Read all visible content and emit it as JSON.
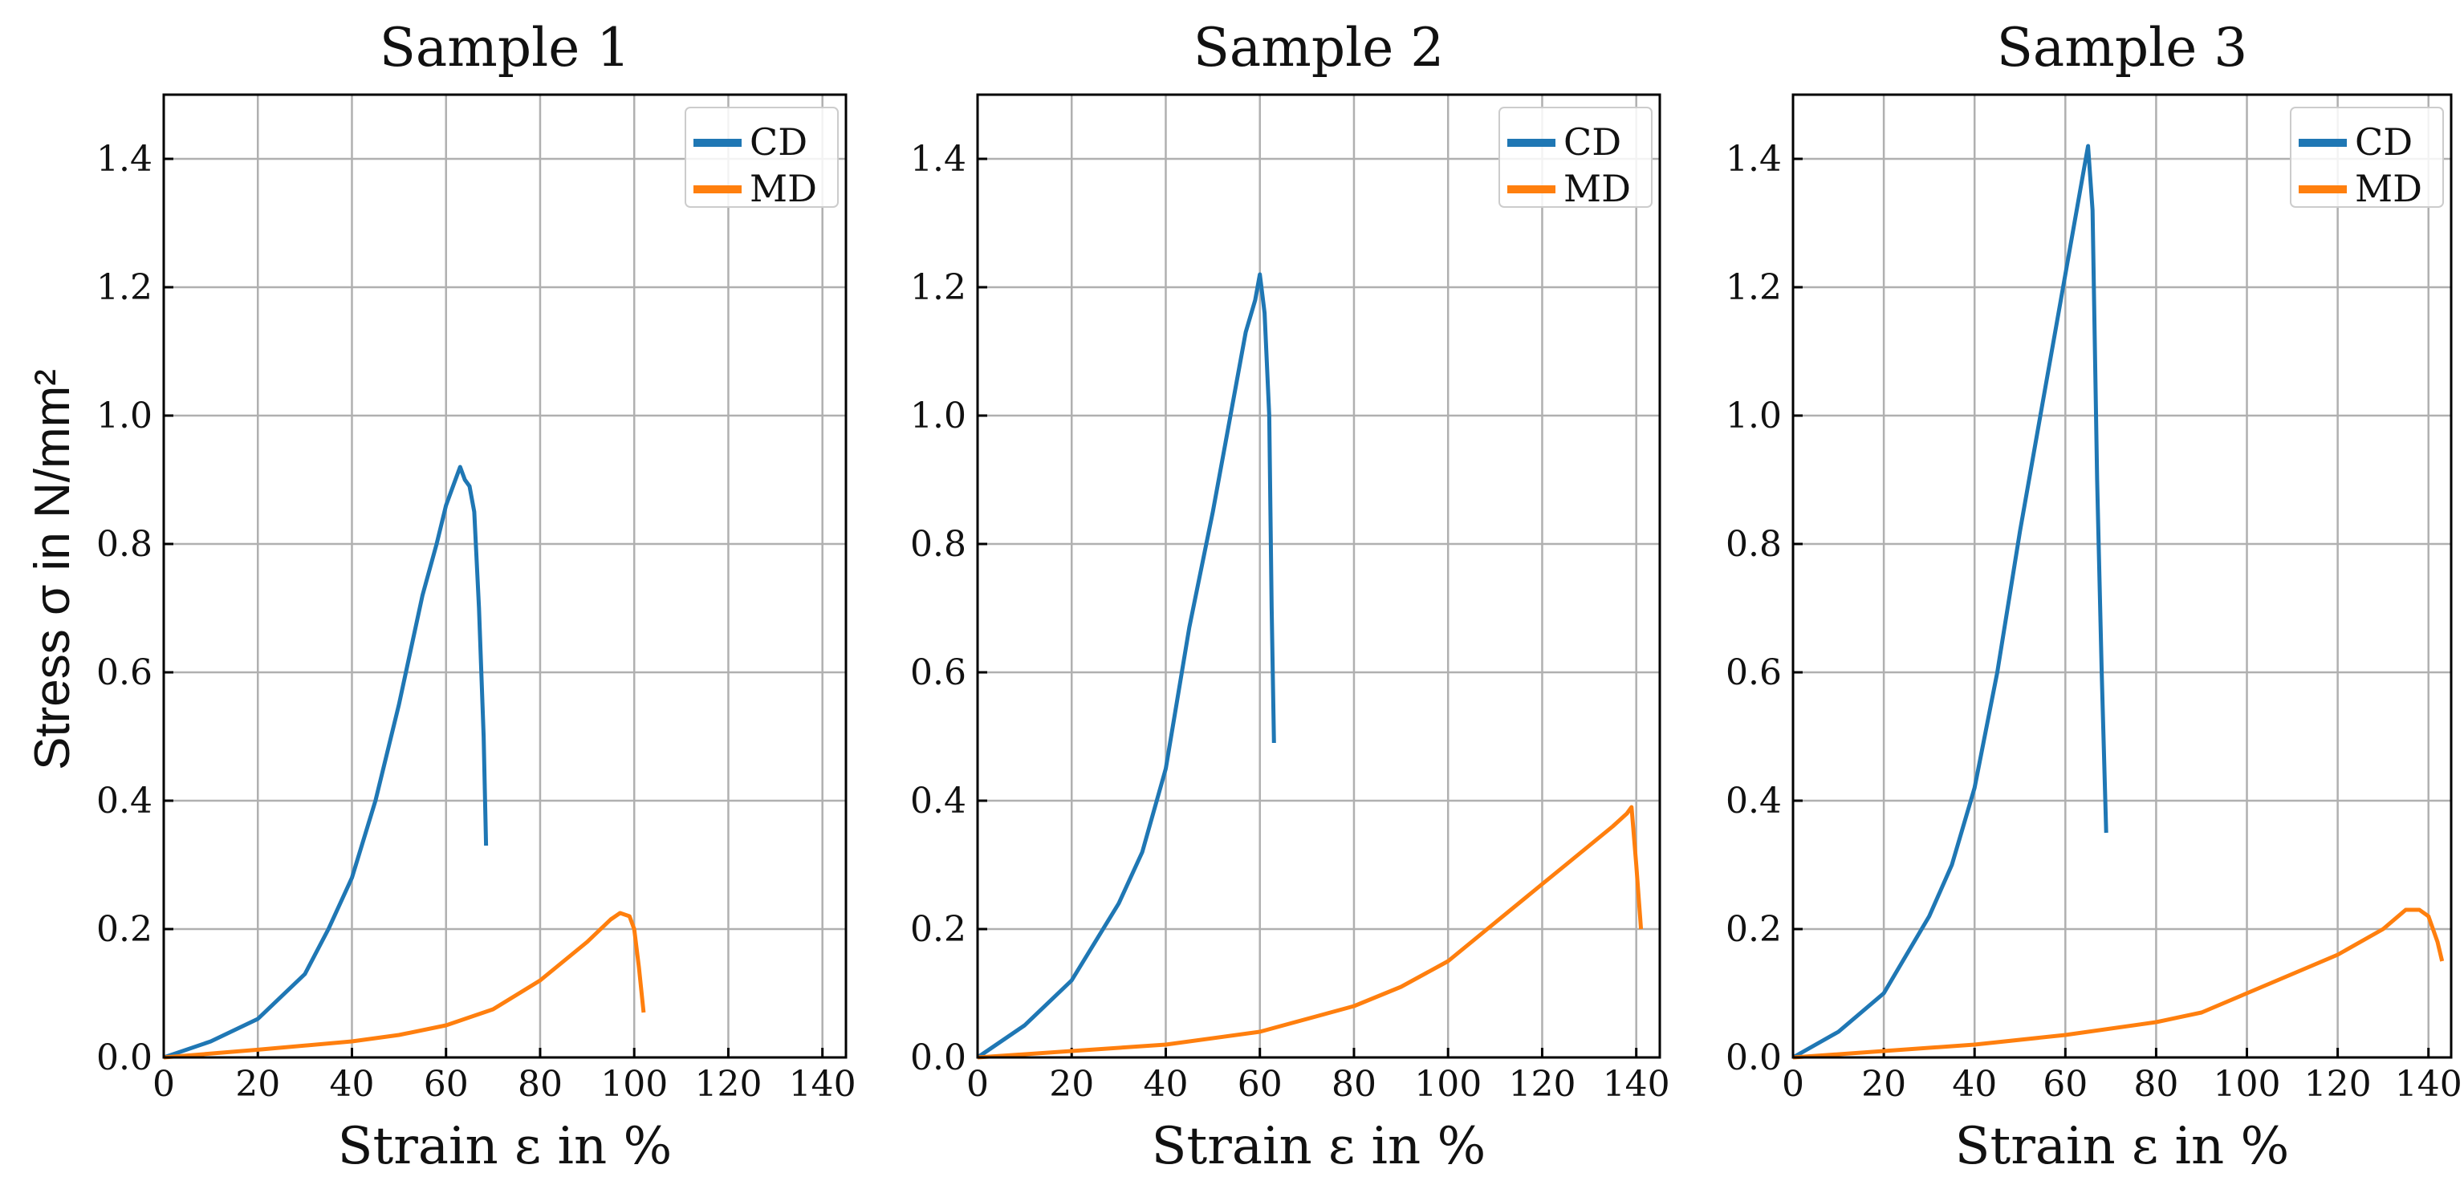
{
  "figure": {
    "ylabel": "Stress σ in N/mm²",
    "xlabel": "Strain ε in %"
  },
  "colors": {
    "CD": "#1f77b4",
    "MD": "#ff7f0e"
  },
  "chart_data": [
    {
      "type": "line",
      "title": "Sample 1",
      "xlabel": "Strain ε in %",
      "ylabel": "Stress σ in N/mm²",
      "xlim": [
        0,
        145
      ],
      "ylim": [
        0,
        1.5
      ],
      "xticks": [
        "0",
        "20",
        "40",
        "60",
        "80",
        "100",
        "120",
        "140"
      ],
      "yticks": [
        "0.0",
        "0.2",
        "0.4",
        "0.6",
        "0.8",
        "1.0",
        "1.2",
        "1.4"
      ],
      "legend": [
        "CD",
        "MD"
      ],
      "legend_position": "top-right",
      "grid": true,
      "series": [
        {
          "name": "CD",
          "x": [
            0,
            10,
            20,
            30,
            35,
            40,
            45,
            50,
            55,
            58,
            60,
            62,
            63,
            64,
            65,
            66,
            67,
            68,
            68.5
          ],
          "y": [
            0,
            0.025,
            0.06,
            0.13,
            0.2,
            0.28,
            0.4,
            0.55,
            0.72,
            0.8,
            0.86,
            0.9,
            0.92,
            0.9,
            0.89,
            0.85,
            0.7,
            0.5,
            0.33
          ]
        },
        {
          "name": "MD",
          "x": [
            0,
            20,
            40,
            50,
            60,
            70,
            80,
            85,
            90,
            95,
            97,
            99,
            100,
            101,
            102
          ],
          "y": [
            0,
            0.012,
            0.025,
            0.035,
            0.05,
            0.075,
            0.12,
            0.15,
            0.18,
            0.215,
            0.225,
            0.22,
            0.2,
            0.14,
            0.07
          ]
        }
      ]
    },
    {
      "type": "line",
      "title": "Sample 2",
      "xlabel": "Strain ε in %",
      "ylabel": "",
      "xlim": [
        0,
        145
      ],
      "ylim": [
        0,
        1.5
      ],
      "xticks": [
        "0",
        "20",
        "40",
        "60",
        "80",
        "100",
        "120",
        "140"
      ],
      "yticks": [
        "0.0",
        "0.2",
        "0.4",
        "0.6",
        "0.8",
        "1.0",
        "1.2",
        "1.4"
      ],
      "legend": [
        "CD",
        "MD"
      ],
      "legend_position": "top-right",
      "grid": true,
      "series": [
        {
          "name": "CD",
          "x": [
            0,
            10,
            20,
            30,
            35,
            40,
            45,
            50,
            53,
            55,
            57,
            59,
            60,
            61,
            62,
            62.5,
            63
          ],
          "y": [
            0,
            0.05,
            0.12,
            0.24,
            0.32,
            0.45,
            0.67,
            0.85,
            0.97,
            1.05,
            1.13,
            1.18,
            1.22,
            1.16,
            1.0,
            0.7,
            0.49
          ]
        },
        {
          "name": "MD",
          "x": [
            0,
            20,
            40,
            60,
            80,
            90,
            100,
            110,
            120,
            125,
            130,
            135,
            138,
            139,
            140,
            141
          ],
          "y": [
            0,
            0.01,
            0.02,
            0.04,
            0.08,
            0.11,
            0.15,
            0.21,
            0.27,
            0.3,
            0.33,
            0.36,
            0.38,
            0.39,
            0.3,
            0.2
          ]
        }
      ]
    },
    {
      "type": "line",
      "title": "Sample 3",
      "xlabel": "Strain ε in %",
      "ylabel": "",
      "xlim": [
        0,
        145
      ],
      "ylim": [
        0,
        1.5
      ],
      "xticks": [
        "0",
        "20",
        "40",
        "60",
        "80",
        "100",
        "120",
        "140"
      ],
      "yticks": [
        "0.0",
        "0.2",
        "0.4",
        "0.6",
        "0.8",
        "1.0",
        "1.2",
        "1.4"
      ],
      "legend": [
        "CD",
        "MD"
      ],
      "legend_position": "top-right",
      "grid": true,
      "series": [
        {
          "name": "CD",
          "x": [
            0,
            10,
            20,
            30,
            35,
            40,
            45,
            50,
            55,
            58,
            60,
            62,
            64,
            65,
            66,
            67,
            68,
            69
          ],
          "y": [
            0,
            0.04,
            0.1,
            0.22,
            0.3,
            0.42,
            0.6,
            0.82,
            1.02,
            1.14,
            1.22,
            1.3,
            1.38,
            1.42,
            1.32,
            0.9,
            0.6,
            0.35
          ]
        },
        {
          "name": "MD",
          "x": [
            0,
            20,
            40,
            60,
            80,
            90,
            100,
            110,
            120,
            130,
            135,
            138,
            140,
            142,
            143
          ],
          "y": [
            0,
            0.01,
            0.02,
            0.035,
            0.055,
            0.07,
            0.1,
            0.13,
            0.16,
            0.2,
            0.23,
            0.23,
            0.22,
            0.18,
            0.15
          ]
        }
      ]
    }
  ]
}
